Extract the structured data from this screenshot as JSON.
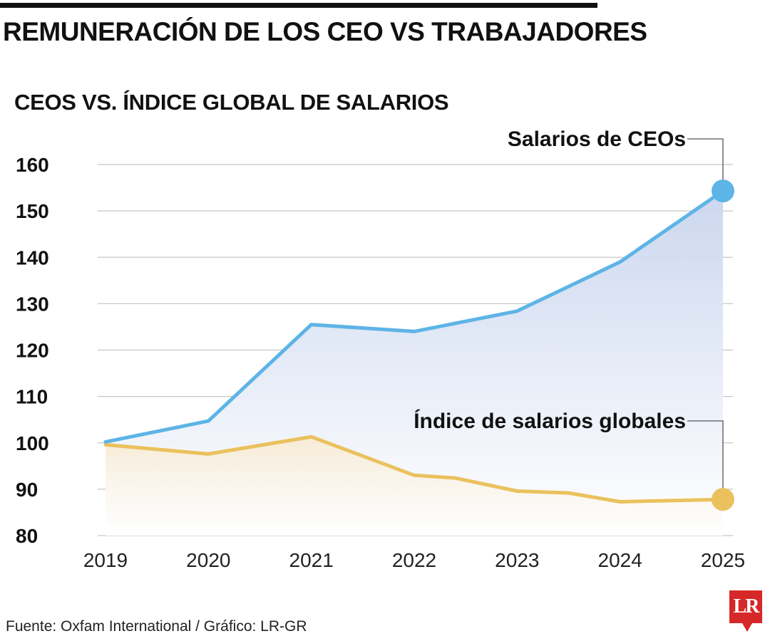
{
  "header": {
    "title": "REMUNERACIÓN DE LOS CEO VS TRABAJADORES"
  },
  "footer": {
    "source": "Fuente: Oxfam International / Gráfico: LR-GR",
    "logo": "LR"
  },
  "colors": {
    "ceo_line": "#5db4e6",
    "ceo_fill": "#c9d5ee",
    "workers_line": "#eac15d",
    "workers_fill": "#f8ead0",
    "grid": "#c7c7c7"
  },
  "chart_data": {
    "type": "line",
    "title": "CEOS VS. ÍNDICE GLOBAL DE SALARIOS",
    "xlabel": "",
    "ylabel": "",
    "ylim": [
      80,
      160
    ],
    "yticks": [
      80,
      90,
      100,
      110,
      120,
      130,
      140,
      150,
      160
    ],
    "categories": [
      "2019",
      "2020",
      "2021",
      "2022",
      "2023",
      "2024",
      "2025"
    ],
    "grid": true,
    "legend": "direct-labels",
    "series": [
      {
        "name": "Salarios de CEOs",
        "points": [
          {
            "x": 2019.0,
            "y": 100.2
          },
          {
            "x": 2020.0,
            "y": 104.7
          },
          {
            "x": 2021.0,
            "y": 125.5
          },
          {
            "x": 2022.0,
            "y": 124.0
          },
          {
            "x": 2023.0,
            "y": 128.4
          },
          {
            "x": 2024.0,
            "y": 139.0
          },
          {
            "x": 2025.0,
            "y": 154.3
          }
        ]
      },
      {
        "name": "Índice de salarios globales",
        "points": [
          {
            "x": 2019.0,
            "y": 99.6
          },
          {
            "x": 2020.0,
            "y": 97.6
          },
          {
            "x": 2021.0,
            "y": 101.3
          },
          {
            "x": 2022.0,
            "y": 93.0
          },
          {
            "x": 2022.4,
            "y": 92.4
          },
          {
            "x": 2023.0,
            "y": 89.6
          },
          {
            "x": 2023.5,
            "y": 89.2
          },
          {
            "x": 2024.0,
            "y": 87.3
          },
          {
            "x": 2025.0,
            "y": 87.8
          }
        ]
      }
    ]
  }
}
